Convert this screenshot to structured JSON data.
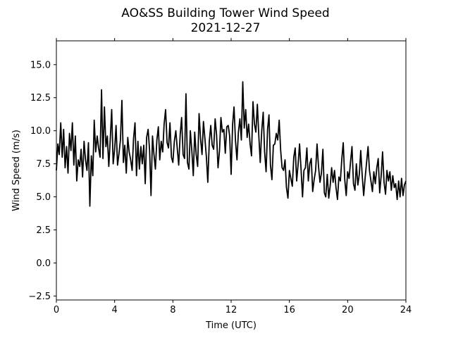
{
  "chart_data": {
    "type": "line",
    "title": "AO&SS Building Tower Wind Speed",
    "subtitle": "2021-12-27",
    "xlabel": "Time (UTC)",
    "ylabel": "Wind Speed (m/s)",
    "xlim": [
      0,
      24
    ],
    "ylim": [
      -2.8,
      16.8
    ],
    "x_ticks": [
      "0",
      "4",
      "8",
      "12",
      "16",
      "20",
      "24"
    ],
    "y_ticks": [
      "−2.5",
      "0.0",
      "2.5",
      "5.0",
      "7.5",
      "10.0",
      "12.5",
      "15.0"
    ],
    "grid": false,
    "legend": "none",
    "line_color": "#000000",
    "series": [
      {
        "x": [
          0.0,
          0.1,
          0.2,
          0.3,
          0.4,
          0.5,
          0.6,
          0.7,
          0.8,
          0.9,
          1.0,
          1.1,
          1.2,
          1.3,
          1.4,
          1.5,
          1.6,
          1.7,
          1.8,
          1.9,
          2.0,
          2.1,
          2.2,
          2.3,
          2.4,
          2.5,
          2.6,
          2.7,
          2.8,
          2.9,
          3.0,
          3.1,
          3.2,
          3.3,
          3.4,
          3.5,
          3.6,
          3.7,
          3.8,
          3.9,
          4.0,
          4.1,
          4.2,
          4.3,
          4.4,
          4.5,
          4.6,
          4.7,
          4.8,
          4.9,
          5.0,
          5.1,
          5.2,
          5.3,
          5.4,
          5.5,
          5.6,
          5.7,
          5.8,
          5.9,
          6.0,
          6.1,
          6.2,
          6.3,
          6.4,
          6.5,
          6.6,
          6.7,
          6.8,
          6.9,
          7.0,
          7.1,
          7.2,
          7.3,
          7.4,
          7.5,
          7.6,
          7.7,
          7.8,
          7.9,
          8.0,
          8.1,
          8.2,
          8.3,
          8.4,
          8.5,
          8.6,
          8.7,
          8.8,
          8.9,
          9.0,
          9.1,
          9.2,
          9.3,
          9.4,
          9.5,
          9.6,
          9.7,
          9.8,
          9.9,
          10.0,
          10.1,
          10.2,
          10.3,
          10.4,
          10.5,
          10.6,
          10.7,
          10.8,
          10.9,
          11.0,
          11.1,
          11.2,
          11.3,
          11.4,
          11.5,
          11.6,
          11.7,
          11.8,
          11.9,
          12.0,
          12.1,
          12.2,
          12.3,
          12.4,
          12.5,
          12.6,
          12.7,
          12.8,
          12.9,
          13.0,
          13.1,
          13.2,
          13.3,
          13.4,
          13.5,
          13.6,
          13.7,
          13.8,
          13.9,
          14.0,
          14.1,
          14.2,
          14.3,
          14.4,
          14.5,
          14.6,
          14.7,
          14.8,
          14.9,
          15.0,
          15.1,
          15.2,
          15.3,
          15.4,
          15.5,
          15.6,
          15.7,
          15.8,
          15.9,
          16.0,
          16.1,
          16.2,
          16.3,
          16.4,
          16.5,
          16.6,
          16.7,
          16.8,
          16.9,
          17.0,
          17.1,
          17.2,
          17.3,
          17.4,
          17.5,
          17.6,
          17.7,
          17.8,
          17.9,
          18.0,
          18.1,
          18.2,
          18.3,
          18.4,
          18.5,
          18.6,
          18.7,
          18.8,
          18.9,
          19.0,
          19.1,
          19.2,
          19.3,
          19.4,
          19.5,
          19.6,
          19.7,
          19.8,
          19.9,
          20.0,
          20.1,
          20.2,
          20.3,
          20.4,
          20.5,
          20.6,
          20.7,
          20.8,
          20.9,
          21.0,
          21.1,
          21.2,
          21.3,
          21.4,
          21.5,
          21.6,
          21.7,
          21.8,
          21.9,
          22.0,
          22.1,
          22.2,
          22.3,
          22.4,
          22.5,
          22.6,
          22.7,
          22.8,
          22.9,
          23.0,
          23.1,
          23.2,
          23.3,
          23.4,
          23.5,
          23.6,
          23.7,
          23.8,
          23.9,
          24.0
        ],
        "values": [
          7.0,
          9.0,
          8.2,
          10.6,
          8.0,
          10.1,
          7.2,
          8.8,
          6.8,
          9.8,
          8.5,
          10.6,
          7.4,
          9.6,
          6.2,
          7.8,
          7.3,
          8.6,
          6.5,
          9.2,
          7.8,
          7.0,
          9.1,
          4.3,
          8.1,
          6.6,
          10.8,
          8.4,
          9.6,
          8.7,
          8.0,
          13.1,
          7.9,
          11.8,
          8.8,
          9.6,
          7.3,
          9.4,
          11.6,
          7.5,
          8.6,
          10.4,
          7.4,
          8.3,
          9.3,
          12.3,
          7.6,
          8.9,
          6.8,
          9.5,
          8.4,
          7.8,
          7.0,
          9.4,
          10.6,
          6.6,
          9.2,
          7.1,
          8.8,
          7.5,
          8.9,
          6.0,
          9.5,
          10.1,
          8.5,
          5.1,
          9.6,
          8.2,
          7.1,
          9.3,
          10.3,
          7.8,
          9.2,
          8.4,
          10.5,
          11.6,
          9.1,
          8.7,
          10.6,
          8.0,
          7.6,
          9.2,
          10.0,
          8.7,
          7.4,
          9.7,
          11.0,
          8.2,
          7.9,
          12.8,
          7.6,
          7.1,
          10.0,
          8.5,
          6.6,
          9.9,
          8.2,
          7.3,
          11.3,
          9.4,
          8.2,
          10.7,
          9.4,
          8.0,
          6.1,
          9.2,
          10.4,
          8.9,
          8.6,
          10.9,
          9.7,
          7.2,
          8.5,
          11.0,
          9.9,
          10.1,
          8.3,
          10.3,
          10.4,
          9.6,
          6.7,
          10.5,
          11.8,
          9.2,
          7.8,
          9.9,
          10.9,
          9.3,
          13.7,
          10.2,
          11.6,
          9.5,
          10.5,
          9.0,
          8.1,
          12.2,
          10.5,
          9.9,
          12.0,
          9.6,
          7.6,
          10.0,
          11.4,
          8.4,
          6.9,
          10.1,
          11.2,
          7.4,
          6.3,
          8.9,
          9.0,
          9.8,
          9.3,
          10.8,
          8.5,
          7.2,
          7.0,
          7.8,
          5.7,
          4.9,
          7.0,
          6.4,
          5.8,
          8.0,
          8.7,
          6.2,
          7.5,
          9.0,
          7.1,
          5.0,
          7.0,
          7.2,
          8.7,
          6.2,
          7.5,
          7.9,
          5.4,
          6.3,
          7.0,
          9.0,
          7.3,
          6.1,
          6.8,
          8.6,
          5.3,
          5.0,
          6.7,
          4.9,
          5.8,
          7.2,
          6.1,
          7.0,
          5.7,
          4.8,
          6.5,
          6.2,
          7.9,
          9.1,
          6.3,
          5.1,
          6.9,
          6.4,
          7.7,
          8.8,
          6.0,
          5.5,
          7.5,
          5.9,
          6.7,
          8.5,
          6.6,
          5.1,
          6.4,
          7.6,
          8.8,
          7.0,
          6.2,
          5.4,
          6.9,
          6.0,
          7.2,
          7.9,
          5.3,
          6.6,
          8.4,
          6.1,
          5.2,
          7.0,
          6.2,
          6.9,
          5.5,
          6.6,
          5.7,
          6.0,
          4.8,
          6.2,
          5.0,
          6.4,
          5.1,
          5.9,
          6.2
        ]
      }
    ]
  }
}
